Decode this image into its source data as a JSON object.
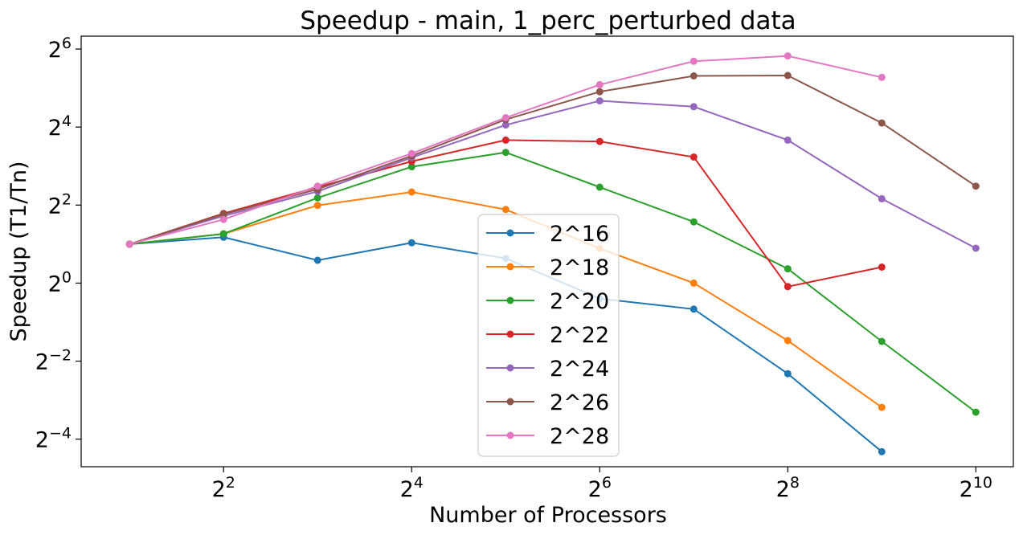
{
  "chart_data": {
    "type": "line",
    "title": "Speedup - main, 1_perc_perturbed data",
    "xlabel": "Number of Processors",
    "ylabel": "Speedup (T1/Tn)",
    "x_scale": "log2",
    "y_scale": "log2",
    "xlim": [
      1.4,
      1350
    ],
    "ylim": [
      0.0383,
      80.5
    ],
    "x_ticks": [
      {
        "base": "2",
        "exp": "2",
        "value": 4
      },
      {
        "base": "2",
        "exp": "4",
        "value": 16
      },
      {
        "base": "2",
        "exp": "6",
        "value": 64
      },
      {
        "base": "2",
        "exp": "8",
        "value": 256
      },
      {
        "base": "2",
        "exp": "10",
        "value": 1024
      }
    ],
    "y_ticks": [
      {
        "base": "2",
        "exp": "−4",
        "value": 0.0625
      },
      {
        "base": "2",
        "exp": "−2",
        "value": 0.25
      },
      {
        "base": "2",
        "exp": "0",
        "value": 1
      },
      {
        "base": "2",
        "exp": "2",
        "value": 4
      },
      {
        "base": "2",
        "exp": "4",
        "value": 16
      },
      {
        "base": "2",
        "exp": "6",
        "value": 64
      }
    ],
    "legend_position": "center-bottom",
    "series": [
      {
        "name": "2^16",
        "color": "#1f77b4",
        "x": [
          2,
          4,
          8,
          16,
          32,
          64,
          128,
          256,
          512
        ],
        "y": [
          2.0,
          2.26,
          1.5,
          2.05,
          1.55,
          0.76,
          0.63,
          0.2,
          0.05
        ]
      },
      {
        "name": "2^18",
        "color": "#ff7f0e",
        "x": [
          2,
          4,
          8,
          16,
          32,
          64,
          128,
          256,
          512
        ],
        "y": [
          2.0,
          2.4,
          3.98,
          5.05,
          3.7,
          1.85,
          1.0,
          0.36,
          0.11
        ]
      },
      {
        "name": "2^20",
        "color": "#2ca02c",
        "x": [
          2,
          4,
          8,
          16,
          32,
          64,
          128,
          256,
          512,
          1024
        ],
        "y": [
          2.0,
          2.4,
          4.55,
          7.9,
          10.2,
          5.5,
          2.97,
          1.29,
          0.355,
          0.101
        ]
      },
      {
        "name": "2^22",
        "color": "#d62728",
        "x": [
          2,
          4,
          8,
          16,
          32,
          64,
          128,
          256,
          512
        ],
        "y": [
          2.0,
          3.45,
          5.5,
          8.7,
          12.7,
          12.4,
          9.4,
          0.94,
          1.33
        ]
      },
      {
        "name": "2^24",
        "color": "#9467bd",
        "x": [
          2,
          4,
          8,
          16,
          32,
          64,
          128,
          256,
          512,
          1024
        ],
        "y": [
          2.0,
          3.3,
          5.1,
          9.3,
          16.6,
          25.5,
          23.0,
          12.7,
          4.48,
          1.86
        ]
      },
      {
        "name": "2^26",
        "color": "#8c564b",
        "x": [
          2,
          4,
          8,
          16,
          32,
          64,
          128,
          256,
          512,
          1024
        ],
        "y": [
          2.0,
          3.4,
          5.3,
          9.6,
          18.3,
          30.0,
          39.7,
          40.0,
          17.2,
          5.6
        ]
      },
      {
        "name": "2^28",
        "color": "#e377c2",
        "x": [
          2,
          4,
          8,
          16,
          32,
          64,
          128,
          256,
          512
        ],
        "y": [
          2.0,
          3.1,
          5.6,
          10.0,
          18.9,
          34.0,
          51.5,
          56.7,
          38.7
        ]
      }
    ]
  }
}
